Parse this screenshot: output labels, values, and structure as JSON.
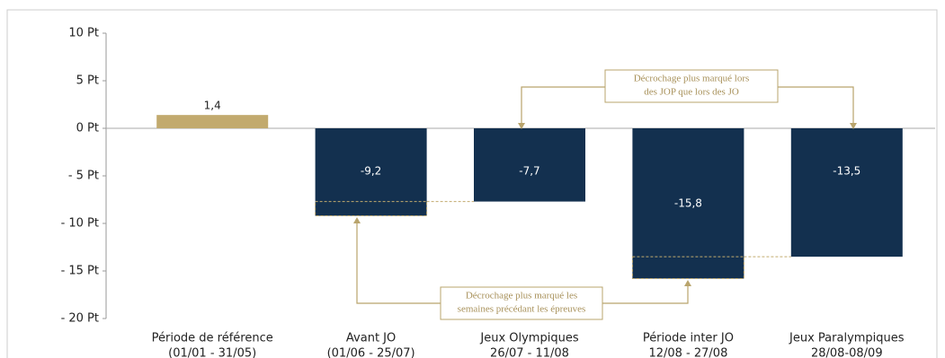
{
  "chart_data": {
    "type": "bar",
    "categories": [
      [
        "Période de référence",
        "(01/01 - 31/05)"
      ],
      [
        "Avant JO",
        "(01/06 - 25/07)"
      ],
      [
        "Jeux Olympiques",
        "26/07 - 11/08"
      ],
      [
        "Période inter JO",
        "12/08 - 27/08"
      ],
      [
        "Jeux Paralympiques",
        "28/08-08/09"
      ]
    ],
    "values": [
      1.4,
      -9.2,
      -7.7,
      -15.8,
      -13.5
    ],
    "value_labels": [
      "1,4",
      "-9,2",
      "-7,7",
      "-15,8",
      "-13,5"
    ],
    "colors": [
      "#c2aa6e",
      "#13304f",
      "#13304f",
      "#13304f",
      "#13304f"
    ],
    "ylim": [
      -20,
      10
    ],
    "yticks": [
      {
        "value": 10,
        "label": "10 Pt"
      },
      {
        "value": 5,
        "label": "5 Pt"
      },
      {
        "value": 0,
        "label": "0 Pt"
      },
      {
        "value": -5,
        "label": "- 5 Pt"
      },
      {
        "value": -10,
        "label": "- 10 Pt"
      },
      {
        "value": -15,
        "label": "- 15 Pt"
      },
      {
        "value": -20,
        "label": "- 20 Pt"
      }
    ],
    "annotations": [
      [
        "Décrochage plus marqué lors",
        "des JOP que lors des JO"
      ],
      [
        "Décrochage plus marqué les",
        "semaines précédant les épreuves"
      ]
    ]
  }
}
